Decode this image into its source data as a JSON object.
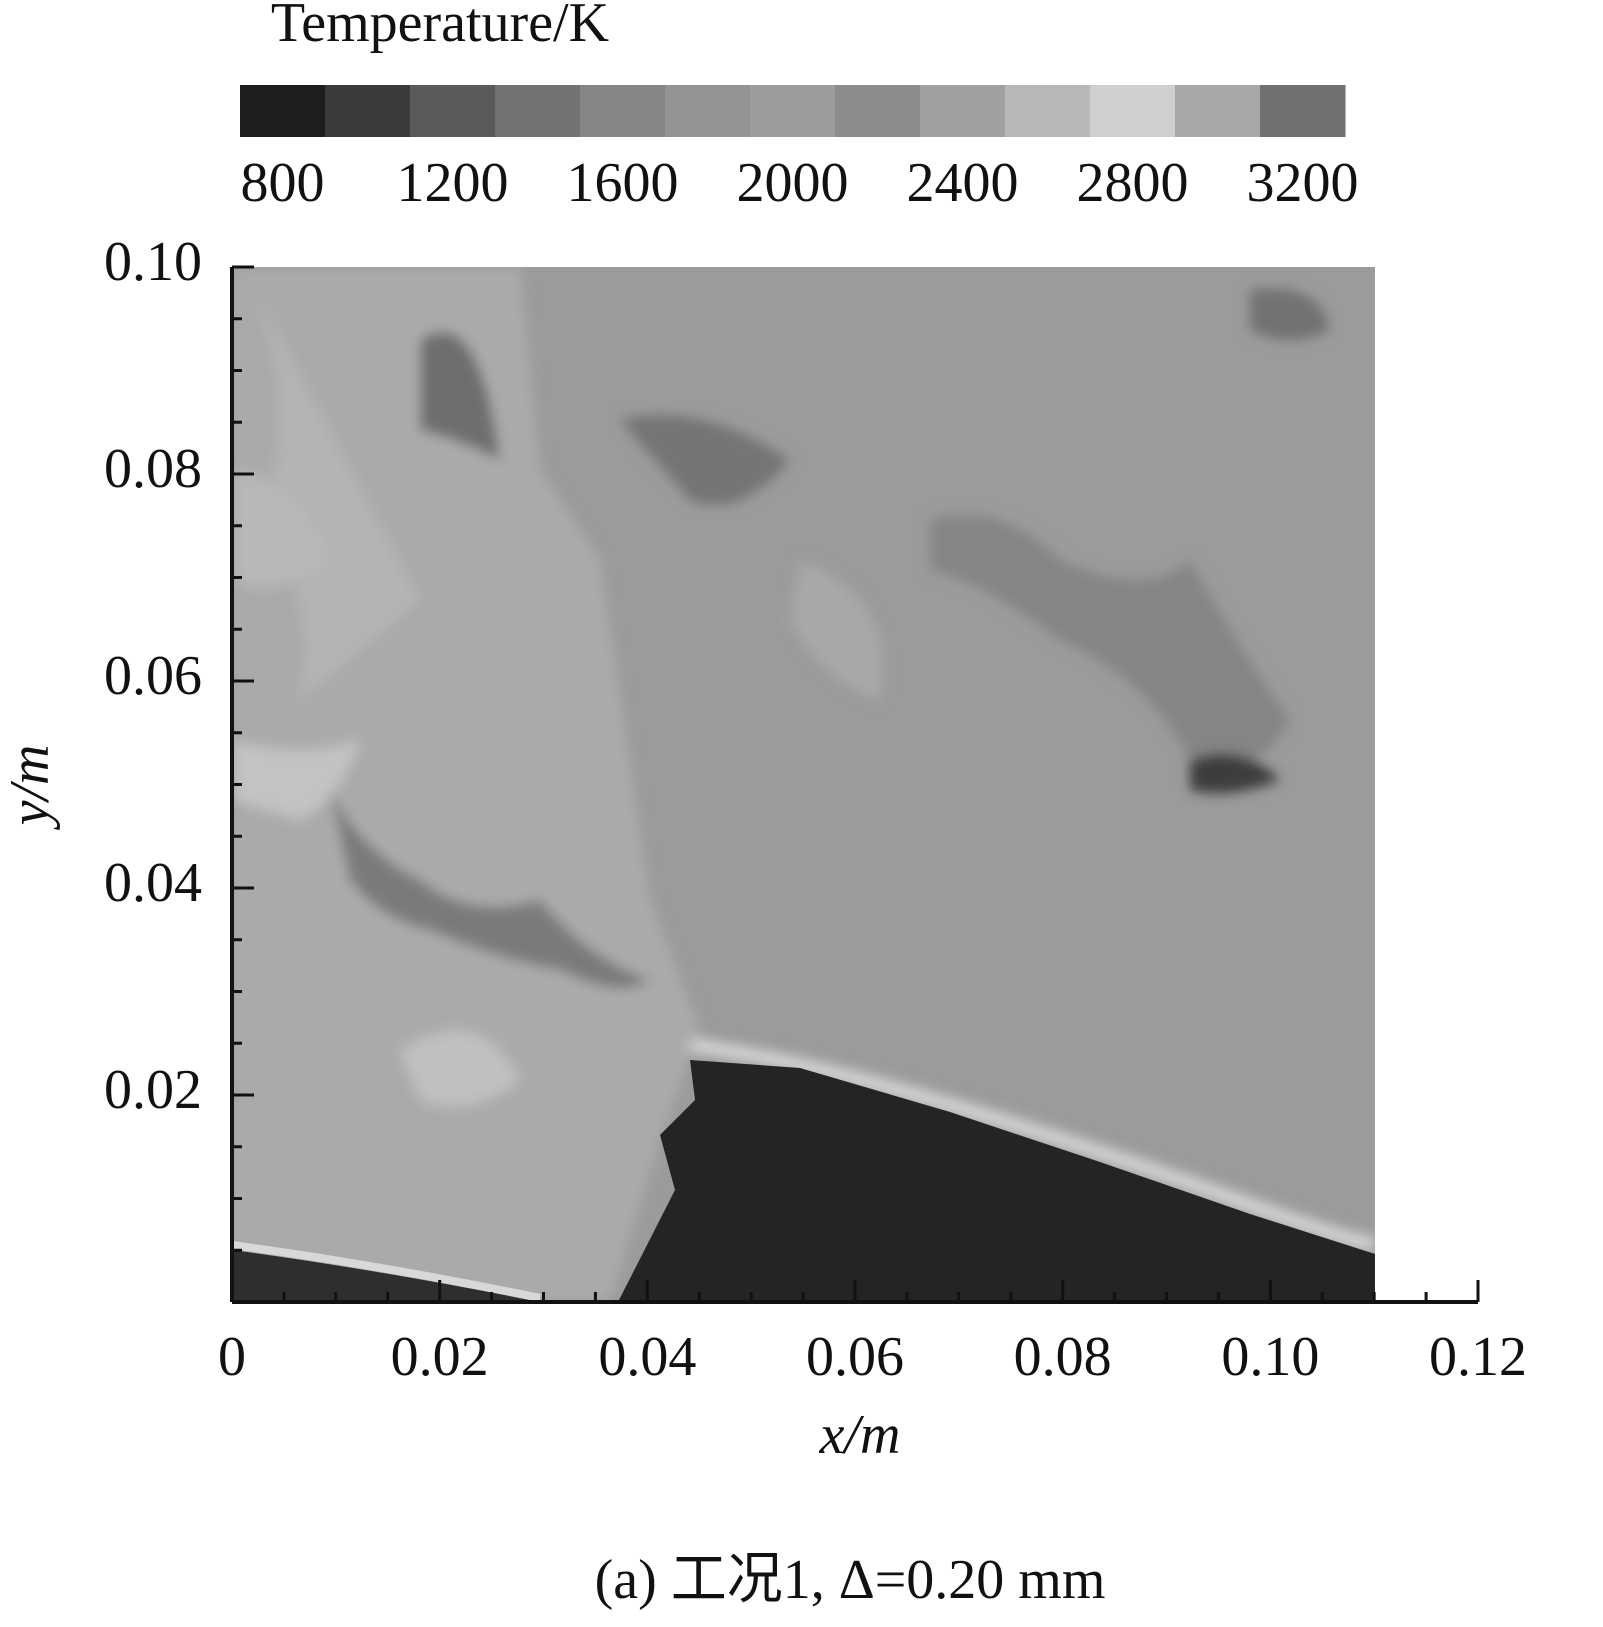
{
  "chart_data": {
    "type": "contour",
    "colorbar": {
      "title": "Temperature/K",
      "lim": [
        700,
        3300
      ],
      "ticks": [
        800,
        1200,
        1600,
        2000,
        2400,
        2800,
        3200
      ],
      "colors": [
        "#1e1e1e",
        "#3a3a3a",
        "#5a5a5a",
        "#727272",
        "#858585",
        "#939393",
        "#9c9c9c",
        "#8c8c8c",
        "#a0a0a0",
        "#b8b8b8",
        "#cfcfcf",
        "#a8a8a8",
        "#707070"
      ]
    },
    "xlabel": "x/m",
    "ylabel": "y/m",
    "xlim": [
      0,
      0.12
    ],
    "xticks": [
      0,
      0.02,
      0.04,
      0.06,
      0.08,
      {
        "value": 0.1,
        "label": "0.10"
      },
      0.12
    ],
    "ylim": [
      0,
      0.1
    ],
    "yticks": [
      0.02,
      0.04,
      0.06,
      0.08,
      {
        "value": 0.1,
        "label": "0.10"
      }
    ],
    "minor_step": 0.005,
    "caption": "(a) 工况1, Δ=0.20 mm"
  }
}
